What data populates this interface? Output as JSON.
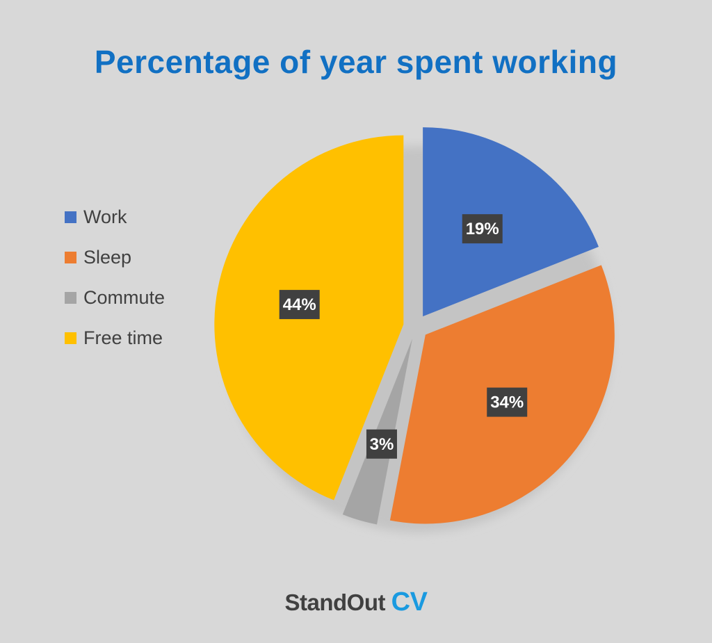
{
  "chart_data": {
    "type": "pie",
    "title": "Percentage of year spent working",
    "title_color": "#1170c3",
    "categories": [
      "Work",
      "Sleep",
      "Commute",
      "Free time"
    ],
    "values": [
      19,
      34,
      3,
      44
    ],
    "data_labels": [
      "19%",
      "34%",
      "3%",
      "44%"
    ],
    "colors": [
      "#4472c4",
      "#ed7d31",
      "#a5a5a5",
      "#ffc000"
    ],
    "legend_position": "left",
    "exploded": true
  },
  "brand": {
    "name_part1": "StandOut",
    "name_part2": "CV",
    "color_part1": "#404040",
    "color_part2": "#1a9ae0"
  }
}
